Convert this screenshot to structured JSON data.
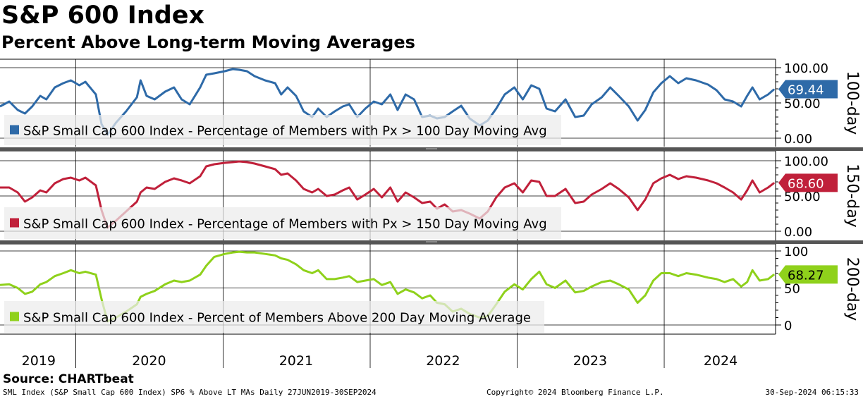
{
  "title": "S&P 600 Index",
  "subtitle": "Percent Above Long-term Moving Averages",
  "source": "Source: CHARTbeat",
  "footer": {
    "left": "SML Index (S&P Small Cap 600 Index) SP6 % Above LT MAs  Daily 27JUN2019-30SEP2024",
    "center": "Copyright© 2024 Bloomberg Finance L.P.",
    "right": "30-Sep-2024 06:15:33"
  },
  "chart_data": [
    {
      "type": "line",
      "panel_label": "100-day",
      "legend": "S&P Small Cap 600 Index - Percentage of Members with Px > 100 Day Moving Avg",
      "color": "#2e6aa8",
      "last_value": "69.44",
      "ylim": [
        0,
        100
      ],
      "yticks": [
        "100.00",
        "50.00",
        "0.00"
      ],
      "x_years": [
        "2019",
        "2020",
        "2021",
        "2022",
        "2023",
        "2024"
      ],
      "x_range": [
        "2019-06-27",
        "2024-09-30"
      ],
      "series": [
        {
          "dates": [
            "2019-06-27",
            "2019-07-20",
            "2019-08-10",
            "2019-08-28",
            "2019-09-15",
            "2019-10-05",
            "2019-10-20",
            "2019-11-10",
            "2019-12-01",
            "2019-12-20",
            "2020-01-10",
            "2020-01-25",
            "2020-02-20",
            "2020-03-05",
            "2020-03-20",
            "2020-04-10",
            "2020-05-05",
            "2020-06-01",
            "2020-06-10",
            "2020-06-25",
            "2020-07-15",
            "2020-08-10",
            "2020-09-01",
            "2020-09-20",
            "2020-10-10",
            "2020-11-05",
            "2020-11-20",
            "2020-12-10",
            "2021-01-05",
            "2021-01-25",
            "2021-02-10",
            "2021-03-01",
            "2021-03-20",
            "2021-04-15",
            "2021-05-10",
            "2021-05-25",
            "2021-06-10",
            "2021-07-01",
            "2021-07-20",
            "2021-08-10",
            "2021-08-25",
            "2021-09-15",
            "2021-10-05",
            "2021-10-25",
            "2021-11-10",
            "2021-11-30",
            "2021-12-20",
            "2022-01-10",
            "2022-01-30",
            "2022-02-20",
            "2022-03-10",
            "2022-03-30",
            "2022-04-20",
            "2022-05-10",
            "2022-05-30",
            "2022-06-16",
            "2022-07-05",
            "2022-07-25",
            "2022-08-15",
            "2022-09-05",
            "2022-09-30",
            "2022-10-20",
            "2022-11-10",
            "2022-12-01",
            "2022-12-25",
            "2023-01-15",
            "2023-02-05",
            "2023-02-25",
            "2023-03-15",
            "2023-04-05",
            "2023-05-01",
            "2023-05-25",
            "2023-06-15",
            "2023-07-05",
            "2023-07-30",
            "2023-08-20",
            "2023-09-10",
            "2023-10-05",
            "2023-10-27",
            "2023-11-15",
            "2023-12-05",
            "2023-12-25",
            "2024-01-15",
            "2024-02-05",
            "2024-02-25",
            "2024-03-20",
            "2024-04-19",
            "2024-05-10",
            "2024-05-30",
            "2024-06-20",
            "2024-07-10",
            "2024-07-25",
            "2024-08-07",
            "2024-08-25",
            "2024-09-15",
            "2024-09-30"
          ],
          "values": [
            45,
            52,
            40,
            35,
            45,
            60,
            55,
            72,
            78,
            82,
            75,
            80,
            62,
            20,
            5,
            22,
            38,
            58,
            82,
            60,
            55,
            66,
            72,
            55,
            48,
            72,
            90,
            92,
            95,
            98,
            97,
            95,
            88,
            82,
            78,
            62,
            72,
            60,
            38,
            30,
            42,
            30,
            38,
            45,
            48,
            30,
            42,
            52,
            48,
            62,
            40,
            62,
            55,
            30,
            32,
            28,
            30,
            38,
            46,
            28,
            18,
            25,
            42,
            62,
            72,
            55,
            75,
            70,
            42,
            38,
            55,
            30,
            32,
            48,
            58,
            72,
            60,
            45,
            25,
            40,
            65,
            78,
            88,
            78,
            85,
            82,
            76,
            68,
            55,
            52,
            45,
            60,
            72,
            55,
            62,
            69.44
          ]
        }
      ]
    },
    {
      "type": "line",
      "panel_label": "150-day",
      "legend": "S&P Small Cap 600 Index - Percentage of Members with Px > 150 Day Moving Avg",
      "color": "#c0203a",
      "last_value": "68.60",
      "ylim": [
        0,
        100
      ],
      "yticks": [
        "100.00",
        "50.00",
        "0.00"
      ],
      "x_years": [
        "2019",
        "2020",
        "2021",
        "2022",
        "2023",
        "2024"
      ],
      "x_range": [
        "2019-06-27",
        "2024-09-30"
      ],
      "series": [
        {
          "dates": [
            "2019-06-27",
            "2019-07-20",
            "2019-08-10",
            "2019-08-28",
            "2019-09-15",
            "2019-10-05",
            "2019-10-20",
            "2019-11-10",
            "2019-12-01",
            "2019-12-20",
            "2020-01-10",
            "2020-01-25",
            "2020-02-20",
            "2020-03-05",
            "2020-03-20",
            "2020-04-10",
            "2020-05-05",
            "2020-06-01",
            "2020-06-10",
            "2020-06-25",
            "2020-07-15",
            "2020-08-10",
            "2020-09-01",
            "2020-09-20",
            "2020-10-10",
            "2020-11-05",
            "2020-11-20",
            "2020-12-10",
            "2021-01-05",
            "2021-01-25",
            "2021-02-10",
            "2021-03-01",
            "2021-03-20",
            "2021-04-15",
            "2021-05-10",
            "2021-05-25",
            "2021-06-10",
            "2021-07-01",
            "2021-07-20",
            "2021-08-10",
            "2021-08-25",
            "2021-09-15",
            "2021-10-05",
            "2021-10-25",
            "2021-11-10",
            "2021-11-30",
            "2021-12-20",
            "2022-01-10",
            "2022-01-30",
            "2022-02-20",
            "2022-03-10",
            "2022-03-30",
            "2022-04-20",
            "2022-05-10",
            "2022-05-30",
            "2022-06-16",
            "2022-07-05",
            "2022-07-25",
            "2022-08-15",
            "2022-09-05",
            "2022-09-30",
            "2022-10-20",
            "2022-11-10",
            "2022-12-01",
            "2022-12-25",
            "2023-01-15",
            "2023-02-05",
            "2023-02-25",
            "2023-03-15",
            "2023-04-05",
            "2023-05-01",
            "2023-05-25",
            "2023-06-15",
            "2023-07-05",
            "2023-07-30",
            "2023-08-20",
            "2023-09-10",
            "2023-10-05",
            "2023-10-27",
            "2023-11-15",
            "2023-12-05",
            "2023-12-25",
            "2024-01-15",
            "2024-02-05",
            "2024-02-25",
            "2024-03-20",
            "2024-04-19",
            "2024-05-10",
            "2024-05-30",
            "2024-06-20",
            "2024-07-10",
            "2024-07-25",
            "2024-08-07",
            "2024-08-25",
            "2024-09-15",
            "2024-09-30"
          ],
          "values": [
            62,
            62,
            55,
            42,
            48,
            58,
            55,
            68,
            74,
            76,
            72,
            76,
            65,
            30,
            5,
            15,
            28,
            42,
            55,
            62,
            60,
            70,
            75,
            72,
            68,
            78,
            92,
            95,
            97,
            98,
            99,
            98,
            96,
            92,
            88,
            80,
            82,
            72,
            60,
            55,
            60,
            50,
            52,
            58,
            62,
            45,
            52,
            60,
            48,
            62,
            42,
            55,
            48,
            40,
            42,
            32,
            38,
            28,
            30,
            25,
            18,
            28,
            48,
            62,
            68,
            55,
            72,
            70,
            50,
            50,
            60,
            40,
            42,
            52,
            60,
            68,
            60,
            48,
            30,
            45,
            68,
            75,
            80,
            74,
            78,
            76,
            72,
            68,
            62,
            55,
            45,
            58,
            72,
            55,
            62,
            68.6
          ]
        }
      ]
    },
    {
      "type": "line",
      "panel_label": "200-day",
      "legend": "S&P Small Cap 600 Index - Percent of Members Above 200 Day Moving Average",
      "color": "#8fd11b",
      "last_value": "68.27",
      "ylim": [
        0,
        100
      ],
      "yticks": [
        "100",
        "50",
        "0"
      ],
      "x_years": [
        "2019",
        "2020",
        "2021",
        "2022",
        "2023",
        "2024"
      ],
      "x_range": [
        "2019-06-27",
        "2024-09-30"
      ],
      "series": [
        {
          "dates": [
            "2019-06-27",
            "2019-07-20",
            "2019-08-10",
            "2019-08-28",
            "2019-09-15",
            "2019-10-05",
            "2019-10-20",
            "2019-11-10",
            "2019-12-01",
            "2019-12-20",
            "2020-01-10",
            "2020-01-25",
            "2020-02-20",
            "2020-03-05",
            "2020-03-20",
            "2020-04-10",
            "2020-05-05",
            "2020-06-01",
            "2020-06-10",
            "2020-06-25",
            "2020-07-15",
            "2020-08-10",
            "2020-09-01",
            "2020-09-20",
            "2020-10-10",
            "2020-11-05",
            "2020-11-20",
            "2020-12-10",
            "2021-01-05",
            "2021-01-25",
            "2021-02-10",
            "2021-03-01",
            "2021-03-20",
            "2021-04-15",
            "2021-05-10",
            "2021-05-25",
            "2021-06-10",
            "2021-07-01",
            "2021-07-20",
            "2021-08-10",
            "2021-08-25",
            "2021-09-15",
            "2021-10-05",
            "2021-10-25",
            "2021-11-10",
            "2021-11-30",
            "2021-12-20",
            "2022-01-10",
            "2022-01-30",
            "2022-02-20",
            "2022-03-10",
            "2022-03-30",
            "2022-04-20",
            "2022-05-10",
            "2022-05-30",
            "2022-06-16",
            "2022-07-05",
            "2022-07-25",
            "2022-08-15",
            "2022-09-05",
            "2022-09-30",
            "2022-10-20",
            "2022-11-10",
            "2022-12-01",
            "2022-12-25",
            "2023-01-15",
            "2023-02-05",
            "2023-02-25",
            "2023-03-15",
            "2023-04-05",
            "2023-05-01",
            "2023-05-25",
            "2023-06-15",
            "2023-07-05",
            "2023-07-30",
            "2023-08-20",
            "2023-09-10",
            "2023-10-05",
            "2023-10-27",
            "2023-11-15",
            "2023-12-05",
            "2023-12-25",
            "2024-01-15",
            "2024-02-05",
            "2024-02-25",
            "2024-03-20",
            "2024-04-19",
            "2024-05-10",
            "2024-05-30",
            "2024-06-20",
            "2024-07-10",
            "2024-07-25",
            "2024-08-07",
            "2024-08-25",
            "2024-09-15",
            "2024-09-30"
          ],
          "values": [
            54,
            55,
            50,
            42,
            45,
            55,
            58,
            66,
            70,
            74,
            70,
            72,
            68,
            35,
            5,
            10,
            18,
            28,
            38,
            42,
            46,
            55,
            60,
            58,
            60,
            68,
            80,
            92,
            96,
            98,
            99,
            98,
            98,
            96,
            94,
            90,
            88,
            82,
            74,
            70,
            74,
            62,
            62,
            64,
            66,
            58,
            60,
            62,
            54,
            58,
            42,
            48,
            44,
            36,
            40,
            30,
            28,
            18,
            22,
            15,
            10,
            12,
            28,
            45,
            55,
            48,
            62,
            72,
            55,
            50,
            60,
            44,
            46,
            52,
            58,
            60,
            55,
            48,
            30,
            40,
            60,
            70,
            70,
            66,
            70,
            68,
            64,
            62,
            58,
            62,
            52,
            58,
            74,
            60,
            62,
            68.27
          ]
        }
      ]
    }
  ]
}
